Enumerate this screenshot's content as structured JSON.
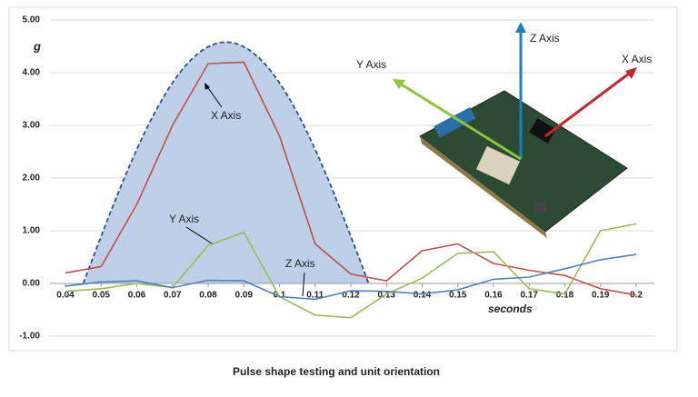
{
  "chart_data": {
    "type": "line",
    "title": "Pulse shape testing and unit orientation",
    "y_label": "g",
    "x_label": "seconds",
    "x": [
      0.04,
      0.05,
      0.06,
      0.07,
      0.08,
      0.09,
      0.1,
      0.11,
      0.12,
      0.13,
      0.14,
      0.15,
      0.16,
      0.17,
      0.18,
      0.19,
      0.2
    ],
    "series": [
      {
        "name": "X Axis",
        "color": "#c0504d",
        "values": [
          0.2,
          0.32,
          1.5,
          3.0,
          4.17,
          4.2,
          2.8,
          0.75,
          0.18,
          0.05,
          0.62,
          0.75,
          0.38,
          0.25,
          0.15,
          -0.1,
          -0.22
        ]
      },
      {
        "name": "Y Axis",
        "color": "#9bbb59",
        "values": [
          -0.15,
          -0.1,
          0.0,
          -0.08,
          0.72,
          0.97,
          -0.25,
          -0.6,
          -0.65,
          -0.2,
          0.1,
          0.57,
          0.6,
          -0.1,
          -0.2,
          1.0,
          1.13
        ]
      },
      {
        "name": "Z Axis",
        "color": "#4f81bd",
        "values": [
          -0.05,
          0.03,
          0.05,
          -0.08,
          0.06,
          0.05,
          -0.25,
          -0.3,
          -0.14,
          -0.15,
          -0.2,
          -0.12,
          0.08,
          0.12,
          0.28,
          0.45,
          0.55
        ]
      }
    ],
    "pulse": {
      "start": 0.045,
      "end": 0.125,
      "peak": 4.58,
      "fill": "#bed0e8",
      "stroke": "#2f4f8f"
    },
    "xlim": [
      0.035,
      0.205
    ],
    "ylim": [
      -1,
      5
    ],
    "xticks": [
      0.04,
      0.05,
      0.06,
      0.07,
      0.08,
      0.09,
      0.1,
      0.11,
      0.12,
      0.13,
      0.14,
      0.15,
      0.16,
      0.17,
      0.18,
      0.19,
      0.2
    ],
    "yticks": [
      {
        "value": -1,
        "label": "-1.00"
      },
      {
        "value": 0,
        "label": "0.00"
      },
      {
        "value": 1,
        "label": "1.00"
      },
      {
        "value": 2,
        "label": "2.00"
      },
      {
        "value": 3,
        "label": "3.00"
      },
      {
        "value": 4,
        "label": "4.00"
      },
      {
        "value": 5,
        "label": "5.00"
      }
    ],
    "grid": true,
    "orientation_labels": [
      "Z Axis",
      "Y Axis",
      "X Axis"
    ]
  }
}
